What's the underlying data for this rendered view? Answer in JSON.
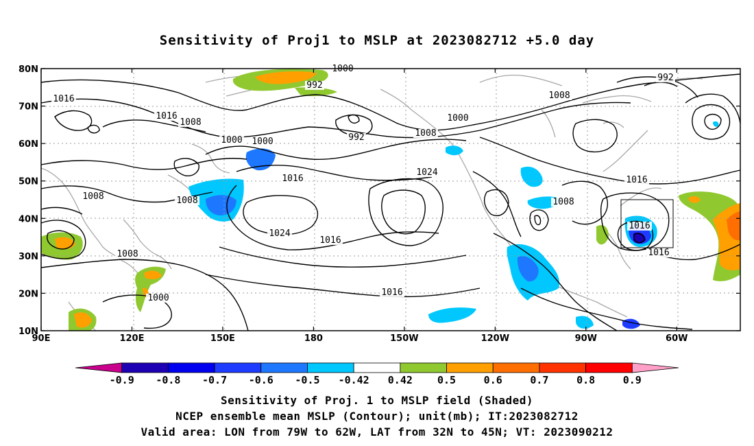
{
  "title": "Sensitivity of Proj1 to MSLP at 2023082712 +5.0 day",
  "map": {
    "lon_range": [
      "90E",
      "40W"
    ],
    "lat_range": [
      "10N",
      "80N"
    ],
    "lon_ticks": [
      "90E",
      "120E",
      "150E",
      "180",
      "150W",
      "120W",
      "90W",
      "60W"
    ],
    "lat_ticks": [
      "80N",
      "70N",
      "60N",
      "50N",
      "40N",
      "30N",
      "20N",
      "10N"
    ],
    "grid": "dotted",
    "valid_box": {
      "lon": [
        "79W",
        "62W"
      ],
      "lat": [
        "32N",
        "45N"
      ]
    }
  },
  "contour_labels": [
    "1016",
    "1016",
    "1008",
    "1000",
    "1000",
    "1000",
    "992",
    "992",
    "1000",
    "1008",
    "1008",
    "992",
    "1008",
    "1016",
    "1024",
    "1024",
    "1016",
    "1008",
    "1008",
    "1008",
    "1000",
    "1016",
    "1016",
    "1008",
    "1016",
    "1016"
  ],
  "colorbar": {
    "labels": [
      "-0.9",
      "-0.8",
      "-0.7",
      "-0.6",
      "-0.5",
      "-0.42",
      "0.42",
      "0.5",
      "0.6",
      "0.7",
      "0.8",
      "0.9"
    ],
    "colors": [
      "#c8008c",
      "#1e00b4",
      "#0000f0",
      "#1e3cff",
      "#1e78ff",
      "#00c8ff",
      "#ffffff",
      "#90c830",
      "#ffa000",
      "#ff6e00",
      "#ff3200",
      "#ff0000",
      "#ffa0c8"
    ]
  },
  "caption": {
    "line1": "Sensitivity of Proj. 1 to MSLP field (Shaded)",
    "line2": "NCEP ensemble mean MSLP (Contour); unit(mb); IT:2023082712",
    "line3": "Valid area: LON from 79W to 62W, LAT from 32N to 45N; VT: 2023090212"
  }
}
